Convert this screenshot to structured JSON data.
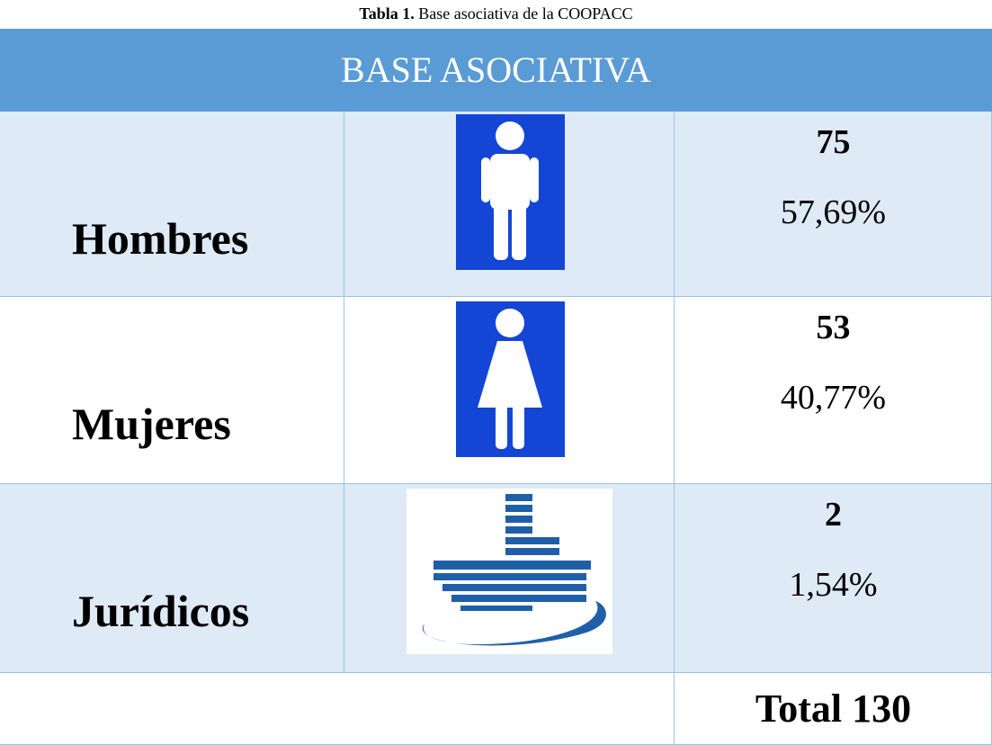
{
  "caption": {
    "label": "Tabla 1.",
    "text": "Base asociativa de la COOPACC"
  },
  "table": {
    "header": "BASE ASOCIATIVA",
    "rows": [
      {
        "label": "Hombres",
        "count": "75",
        "percent": "57,69%"
      },
      {
        "label": "Mujeres",
        "count": "53",
        "percent": "40,77%"
      },
      {
        "label": "Jurídicos",
        "count": "2",
        "percent": "1,54%"
      }
    ],
    "total": "Total 130"
  }
}
